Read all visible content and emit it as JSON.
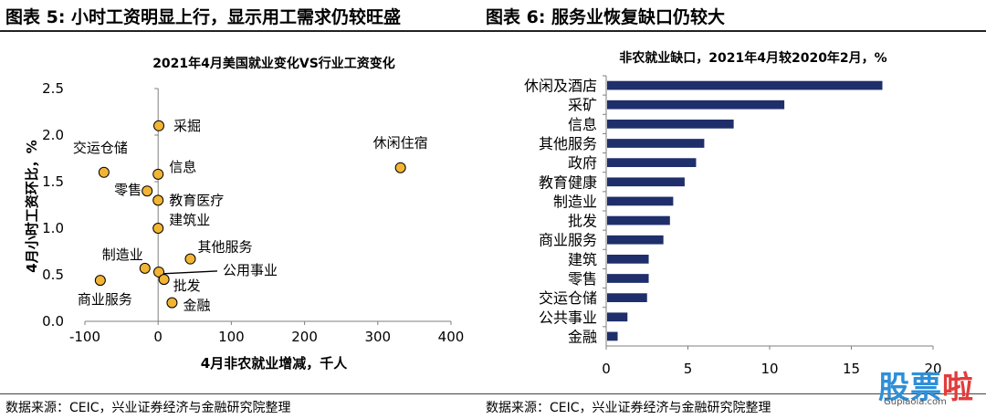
{
  "header": {
    "left_title": "图表 5:  小时工资明显上行，显示用工需求仍较旺盛",
    "right_title": "图表 6:  服务业恢复缺口仍较大"
  },
  "footer": {
    "left_source": "数据来源：CEIC，兴业证券经济与金融研究院整理",
    "right_source": "数据来源：CEIC，兴业证券经济与金融研究院整理"
  },
  "watermark": {
    "chars": [
      "股",
      "票",
      "啦"
    ],
    "sub": "Gupiaola.com"
  },
  "chart_data": [
    {
      "type": "scatter",
      "title": "2021年4月美国就业变化VS行业工资变化",
      "xlabel": "4月非农就业增减，千人",
      "ylabel": "4月小时工资环比，%",
      "xlim": [
        -100,
        400
      ],
      "ylim": [
        0.0,
        2.5
      ],
      "xticks": [
        -100,
        0,
        100,
        200,
        300,
        400
      ],
      "yticks": [
        0.0,
        0.5,
        1.0,
        1.5,
        2.0,
        2.5
      ],
      "xtick_labels": [
        "-100",
        "0",
        "100",
        "200",
        "300",
        "400"
      ],
      "ytick_labels": [
        "0.0",
        "0.5",
        "1.0",
        "1.5",
        "2.0",
        "2.5"
      ],
      "marker_color": "#f2b533",
      "points": [
        {
          "label": "采掘",
          "x": 1,
          "y": 2.1
        },
        {
          "label": "交运仓储",
          "x": -74,
          "y": 1.6
        },
        {
          "label": "信息",
          "x": 0,
          "y": 1.58
        },
        {
          "label": "休闲住宿",
          "x": 331,
          "y": 1.65
        },
        {
          "label": "零售",
          "x": -15,
          "y": 1.4
        },
        {
          "label": "教育医疗",
          "x": 0,
          "y": 1.3
        },
        {
          "label": "建筑业",
          "x": 0,
          "y": 1.0
        },
        {
          "label": "其他服务",
          "x": 44,
          "y": 0.67
        },
        {
          "label": "制造业",
          "x": -18,
          "y": 0.57
        },
        {
          "label": "公用事业",
          "x": 1,
          "y": 0.53
        },
        {
          "label": "批发",
          "x": 8,
          "y": 0.45
        },
        {
          "label": "商业服务",
          "x": -79,
          "y": 0.44
        },
        {
          "label": "金融",
          "x": 19,
          "y": 0.2
        }
      ]
    },
    {
      "type": "bar",
      "orientation": "horizontal",
      "title": "非农就业缺口，2021年4月较2020年2月，%",
      "xlim": [
        0,
        20
      ],
      "xticks": [
        0,
        5,
        10,
        15,
        20
      ],
      "xtick_labels": [
        "0",
        "5",
        "10",
        "15",
        "20"
      ],
      "bar_color": "#1f2f6b",
      "categories": [
        "休闲及酒店",
        "采矿",
        "信息",
        "其他服务",
        "政府",
        "教育健康",
        "制造业",
        "批发",
        "商业服务",
        "建筑",
        "零售",
        "交运仓储",
        "公共事业",
        "金融"
      ],
      "values": [
        16.9,
        10.9,
        7.8,
        6.0,
        5.5,
        4.8,
        4.1,
        3.9,
        3.5,
        2.6,
        2.6,
        2.5,
        1.3,
        0.7
      ]
    }
  ]
}
